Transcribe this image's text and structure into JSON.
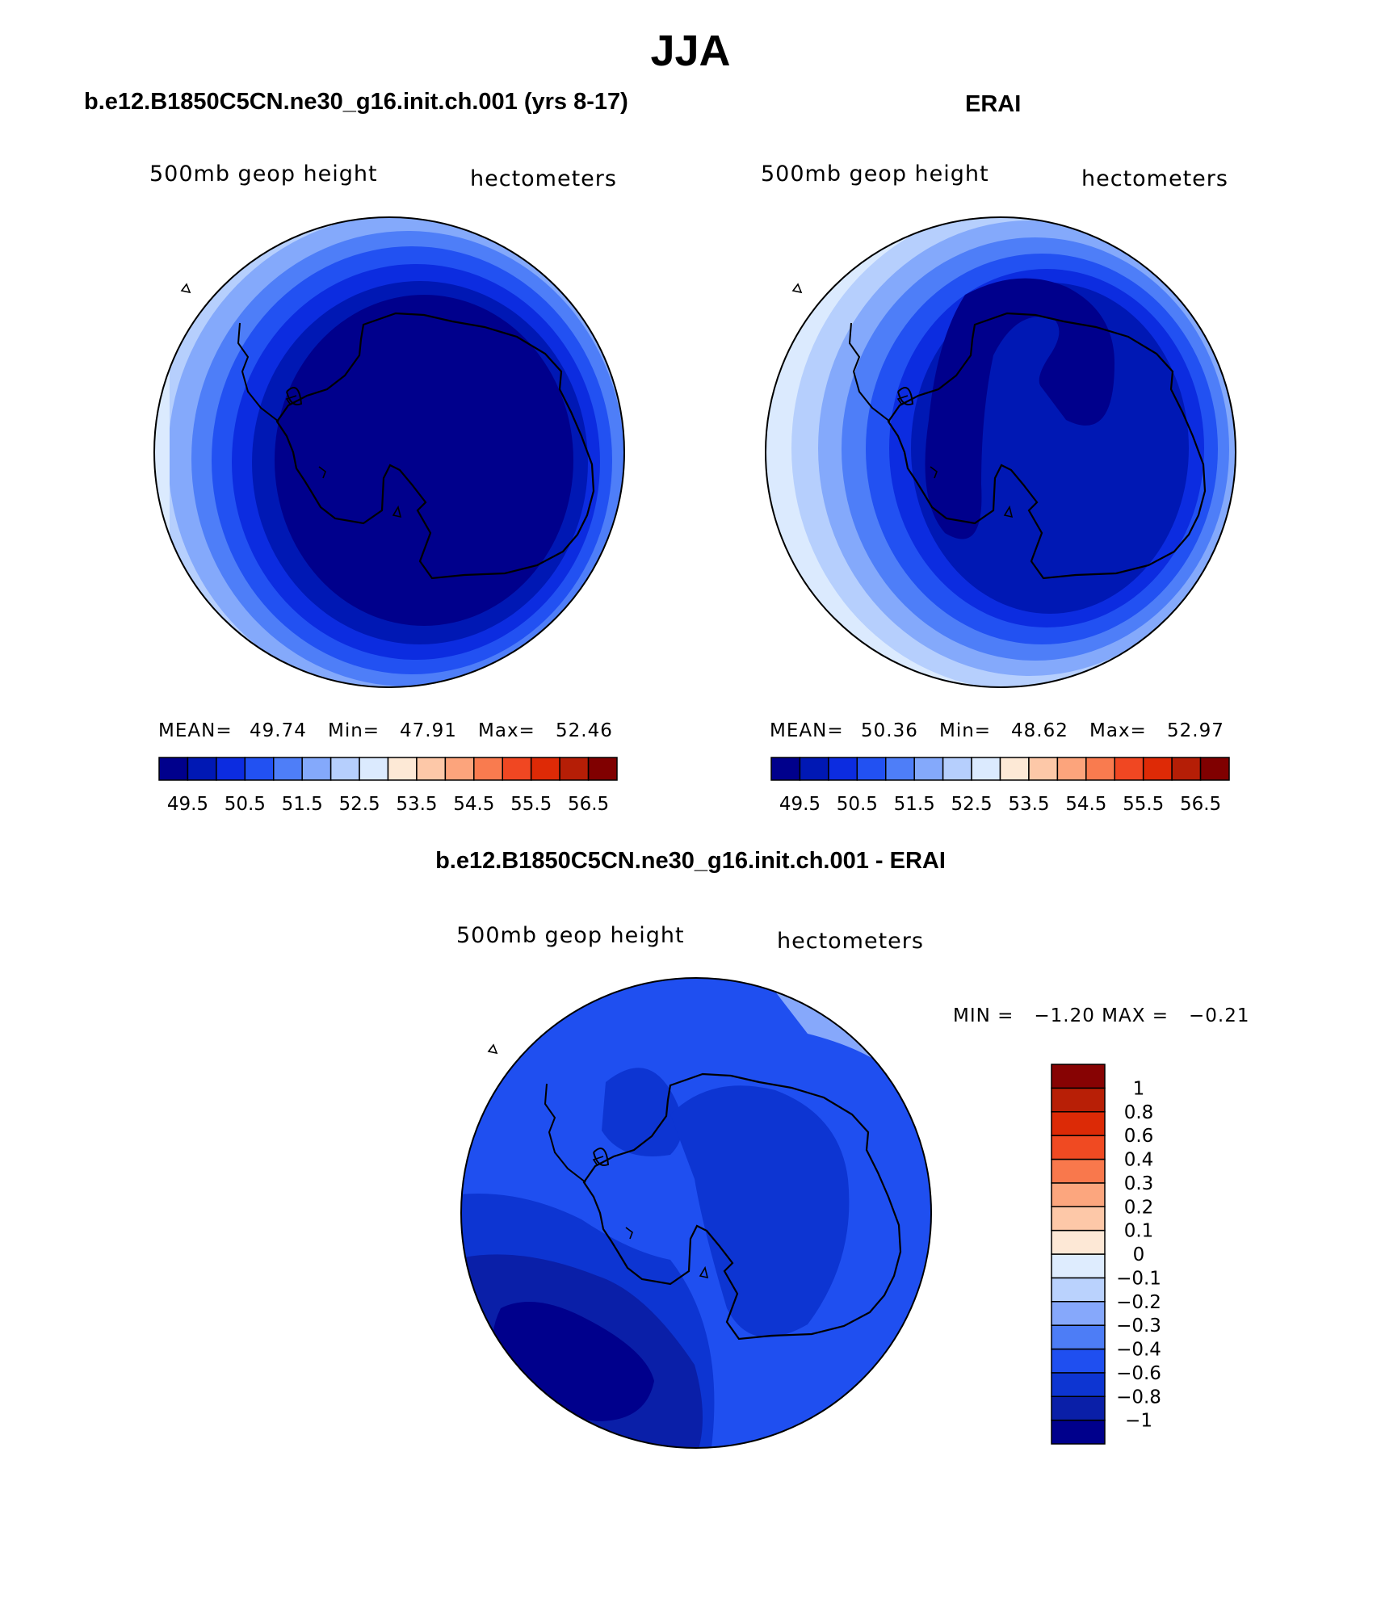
{
  "title": "JJA",
  "panels": {
    "model": {
      "title": "b.e12.B1850C5CN.ne30_g16.init.ch.001 (yrs 8-17)",
      "variable": "500mb geop height",
      "units": "hectometers",
      "mean_label": "MEAN=",
      "mean": "49.74",
      "min_label": "Min=",
      "min": "47.91",
      "max_label": "Max=",
      "max": "52.46"
    },
    "obs": {
      "title": "ERAI",
      "variable": "500mb geop height",
      "units": "hectometers",
      "mean_label": "MEAN=",
      "mean": "50.36",
      "min_label": "Min=",
      "min": "48.62",
      "max_label": "Max=",
      "max": "52.97"
    },
    "diff": {
      "title": "b.e12.B1850C5CN.ne30_g16.init.ch.001 - ERAI",
      "variable": "500mb geop height",
      "units": "hectometers",
      "minmax_text": "MIN =   −1.20 MAX =   −0.21"
    }
  },
  "colorbar_main": {
    "colors": [
      "#00008c",
      "#0018b4",
      "#0c2ce0",
      "#2251f2",
      "#4e7ef8",
      "#84a9fb",
      "#b6cffd",
      "#dbeafe",
      "#fde9d6",
      "#fdc8a8",
      "#fca47c",
      "#f97b4f",
      "#f04722",
      "#de2a06",
      "#b51e06",
      "#800000"
    ],
    "tick_labels": [
      "49.5",
      "50.5",
      "51.5",
      "52.5",
      "53.5",
      "54.5",
      "55.5",
      "56.5"
    ]
  },
  "colorbar_diff": {
    "colors": [
      "#00008c",
      "#0a1fa8",
      "#0d35d2",
      "#1f4ff0",
      "#4d7df6",
      "#86a8fb",
      "#bad2fd",
      "#deecfe",
      "#fde8d6",
      "#fdc8a8",
      "#fca67e",
      "#f9784c",
      "#f04a22",
      "#dc2a06",
      "#b81f06",
      "#870303"
    ],
    "tick_labels": [
      "−1",
      "−0.8",
      "−0.6",
      "−0.4",
      "−0.3",
      "−0.2",
      "−0.1",
      "0",
      "0.1",
      "0.2",
      "0.3",
      "0.4",
      "0.6",
      "0.8",
      "1"
    ]
  }
}
